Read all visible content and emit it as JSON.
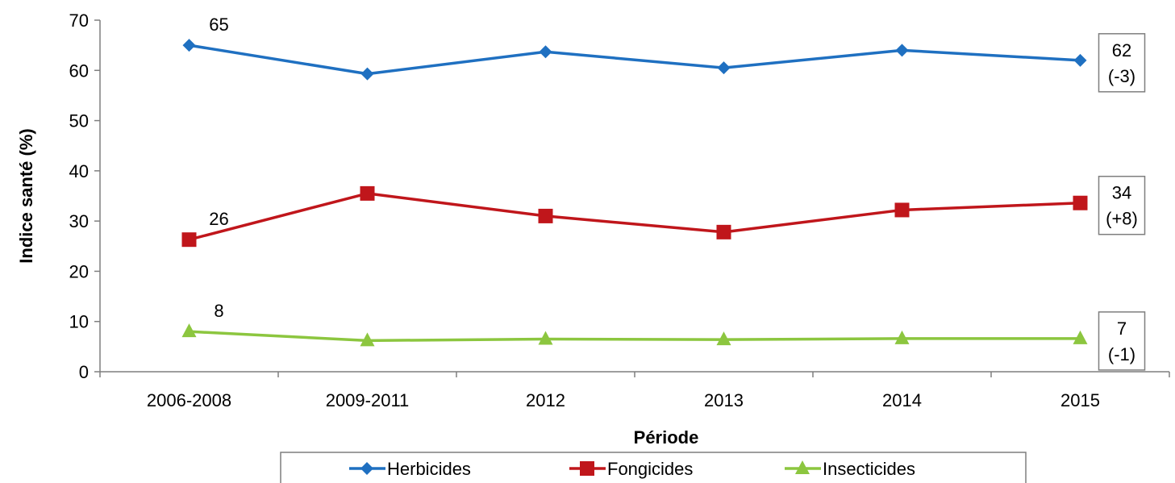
{
  "chart_data": {
    "type": "line",
    "title": "",
    "xlabel": "Période",
    "ylabel": "Indice santé (%)",
    "ylim": [
      0,
      70
    ],
    "yticks": [
      "0",
      "10",
      "20",
      "30",
      "40",
      "50",
      "60",
      "70"
    ],
    "categories": [
      "2006-2008",
      "2009-2011",
      "2012",
      "2013",
      "2014",
      "2015"
    ],
    "grid": false,
    "legend_position": "bottom",
    "series": [
      {
        "name": "Herbicides",
        "color": "#1f70c1",
        "marker": "diamond",
        "values": [
          65,
          59.3,
          63.7,
          60.5,
          64,
          62
        ],
        "start_label": "65",
        "end_label": [
          "62",
          "(-3)"
        ]
      },
      {
        "name": "Fongicides",
        "color": "#c0161b",
        "marker": "square",
        "values": [
          26.3,
          35.5,
          31,
          27.8,
          32.2,
          33.6
        ],
        "start_label": "26",
        "end_label": [
          "34",
          "(+8)"
        ]
      },
      {
        "name": "Insecticides",
        "color": "#8cc63f",
        "marker": "triangle",
        "values": [
          8,
          6.2,
          6.5,
          6.4,
          6.6,
          6.6
        ],
        "start_label": "8",
        "end_label": [
          "7",
          "(-1)"
        ]
      }
    ]
  }
}
